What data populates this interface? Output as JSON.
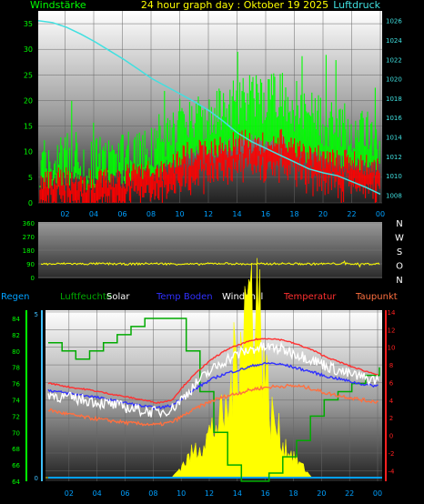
{
  "header": {
    "left_title": "Windstärke",
    "center_title": "24 hour graph day : Oktober 19 2025",
    "right_title": "Luftdruck"
  },
  "colors": {
    "wind_gust": "#00ff00",
    "wind_avg": "#ff0000",
    "pressure": "#40e0e0",
    "direction": "#ffff00",
    "humidity": "#00aa00",
    "solar": "#ffff00",
    "temp_ground": "#3030ff",
    "windchill": "#ffffff",
    "temperature": "#ff3030",
    "dewpoint": "#ff7040",
    "rain": "#00a0ff",
    "axis_left_green": "#00ff00",
    "axis_right_blue": "#40c0ff",
    "axis_right_red": "#ff2020"
  },
  "chart_data": [
    {
      "type": "line",
      "title": "24 hour graph day : Oktober 19 2025",
      "x_ticks": [
        "02",
        "04",
        "06",
        "08",
        "10",
        "12",
        "14",
        "16",
        "18",
        "20",
        "22",
        "00"
      ],
      "y_left": {
        "label": "Windstärke",
        "ticks": [
          "0",
          "5",
          "10",
          "15",
          "20",
          "25",
          "30",
          "35"
        ],
        "range": [
          0,
          37.5
        ]
      },
      "y_right": {
        "label": "Luftdruck",
        "ticks": [
          "1008",
          "1010",
          "1012",
          "1014",
          "1016",
          "1018",
          "1020",
          "1022",
          "1024",
          "1026"
        ],
        "range": [
          1007.2,
          1027
        ]
      },
      "series": [
        {
          "name": "Windstärke",
          "key": "gust",
          "approx_values": [
            8,
            8,
            9,
            7,
            8,
            8,
            9,
            10,
            11,
            12,
            16,
            17,
            17,
            18,
            20,
            21,
            20,
            22,
            18,
            17,
            16,
            15,
            14,
            13,
            12
          ]
        },
        {
          "name": "",
          "key": "avg",
          "approx_values": [
            4,
            4,
            5,
            4,
            4,
            5,
            5,
            6,
            6,
            7,
            9,
            10,
            10,
            11,
            12,
            12,
            11,
            12,
            10,
            9,
            9,
            8,
            8,
            7,
            7
          ]
        },
        {
          "name": "Luftdruck",
          "key": "pressure",
          "values": [
            1026.0,
            1025.8,
            1025.3,
            1024.6,
            1023.8,
            1022.9,
            1022.0,
            1021.0,
            1020.0,
            1019.2,
            1018.4,
            1017.6,
            1016.7,
            1015.6,
            1014.4,
            1013.5,
            1012.8,
            1012.1,
            1011.4,
            1010.7,
            1010.3,
            1010.0,
            1009.4,
            1008.8,
            1008.1
          ]
        }
      ]
    },
    {
      "type": "line",
      "title": "",
      "x_ticks": [
        "02",
        "04",
        "06",
        "08",
        "10",
        "12",
        "14",
        "16",
        "18",
        "20",
        "22",
        "00"
      ],
      "y_left": {
        "ticks": [
          "0",
          "90",
          "180",
          "270",
          "360"
        ],
        "range": [
          0,
          360
        ]
      },
      "y_right": {
        "ticks": [
          "N",
          "W",
          "S",
          "O",
          "N"
        ]
      },
      "series": [
        {
          "name": "",
          "key": "direction",
          "approx_values": [
            90,
            88,
            92,
            89,
            91,
            90,
            88,
            90,
            92,
            90,
            89,
            87,
            91,
            93,
            89,
            88,
            90,
            91,
            90,
            89,
            90,
            91,
            90,
            89,
            90
          ]
        }
      ]
    },
    {
      "type": "line",
      "title": "",
      "legend": [
        "Regen",
        "Luftfeuchte",
        "Solar",
        "Temp Boden",
        "Windchill",
        "Temperatur",
        "Taupunkt"
      ],
      "x_ticks": [
        "02",
        "04",
        "06",
        "08",
        "10",
        "12",
        "14",
        "16",
        "18",
        "20",
        "22",
        "00"
      ],
      "y_left_green": {
        "ticks": [
          "64",
          "66",
          "68",
          "70",
          "72",
          "74",
          "76",
          "78",
          "80",
          "82",
          "84"
        ],
        "range": [
          64,
          85
        ]
      },
      "y_left_blue": {
        "ticks": [
          "0",
          "5"
        ],
        "range": [
          0,
          5
        ]
      },
      "y_right": {
        "ticks": [
          "-4",
          "-2",
          "0",
          "2",
          "4",
          "6",
          "8",
          "10",
          "12",
          "14"
        ],
        "range": [
          -5.2,
          14.2
        ]
      },
      "series": [
        {
          "name": "Luftfeuchte",
          "key": "humidity",
          "approx_values": [
            81,
            80,
            79,
            80,
            81,
            82,
            83,
            84,
            84,
            84,
            80,
            75,
            70,
            66,
            64,
            64,
            65,
            67,
            69,
            72,
            74,
            75,
            76,
            77,
            78
          ]
        },
        {
          "name": "Solar",
          "key": "solar",
          "approx_values": [
            0,
            0,
            0,
            0,
            0,
            0,
            0,
            0,
            0,
            0,
            0.5,
            1,
            1.5,
            2,
            5,
            6,
            2,
            1,
            0.5,
            0,
            0,
            0,
            0,
            0,
            0
          ]
        },
        {
          "name": "Temp Boden",
          "key": "ground",
          "approx_values": [
            5.2,
            4.9,
            4.7,
            4.5,
            4.2,
            3.9,
            3.6,
            3.3,
            3.1,
            3.4,
            4.5,
            5.6,
            6.5,
            7.1,
            7.5,
            8.0,
            8.2,
            8.0,
            7.6,
            7.2,
            6.7,
            6.4,
            6.0,
            5.7,
            5.6
          ]
        },
        {
          "name": "Windchill",
          "key": "windchill",
          "approx_values": [
            4.8,
            4.4,
            4.2,
            4.0,
            3.7,
            3.4,
            3.1,
            2.8,
            2.6,
            3.0,
            4.6,
            6.3,
            7.6,
            8.7,
            9.4,
            9.9,
            10.0,
            9.7,
            9.2,
            8.6,
            7.9,
            7.3,
            6.8,
            6.4,
            6.2
          ]
        },
        {
          "name": "Temperatur",
          "key": "temp",
          "approx_values": [
            6.0,
            5.7,
            5.4,
            5.2,
            4.9,
            4.6,
            4.3,
            4.0,
            3.7,
            4.0,
            5.9,
            7.5,
            8.8,
            9.8,
            10.4,
            10.9,
            11.0,
            10.8,
            10.3,
            9.7,
            8.9,
            8.3,
            7.7,
            7.2,
            6.8
          ]
        },
        {
          "name": "Taupunkt",
          "key": "dew",
          "approx_values": [
            3.0,
            2.6,
            2.3,
            2.0,
            1.8,
            1.6,
            1.4,
            1.3,
            1.2,
            1.5,
            2.4,
            3.3,
            4.0,
            4.5,
            4.9,
            5.3,
            5.5,
            5.6,
            5.6,
            5.3,
            4.8,
            4.5,
            4.2,
            3.9,
            3.8
          ]
        }
      ]
    }
  ]
}
